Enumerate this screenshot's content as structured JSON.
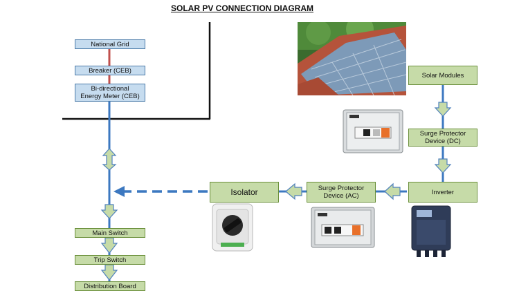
{
  "title": "SOLAR PV CONNECTION DIAGRAM",
  "boxes": {
    "national_grid": "National Grid",
    "breaker": "Breaker (CEB)",
    "meter_line1": "Bi-directional",
    "meter_line2": "Energy Meter (CEB)",
    "main_switch": "Main Switch",
    "trip_switch": "Trip Switch",
    "distribution_board": "Distribution Board",
    "solar_modules": "Solar Modules",
    "spd_dc_line1": "Surge Protector",
    "spd_dc_line2": "Device (DC)",
    "inverter": "Inverter",
    "spd_ac_line1": "Surge Protector",
    "spd_ac_line2": "Device (AC)",
    "isolator": "Isolator"
  },
  "colors": {
    "blue_line": "#3c78c0",
    "red_line": "#c0504d",
    "box_blue_fill": "#c6dcef",
    "box_green_fill": "#c6dba8",
    "arrow_fill": "#c6dba8",
    "arrow_stroke": "#4f81bd"
  },
  "images": {
    "roof_panels": "solar-panels-on-roof-photo",
    "spd_dc": "surge-protector-dc-photo",
    "isolator": "isolator-switch-photo",
    "spd_ac": "surge-protector-ac-photo",
    "inverter": "inverter-photo"
  }
}
